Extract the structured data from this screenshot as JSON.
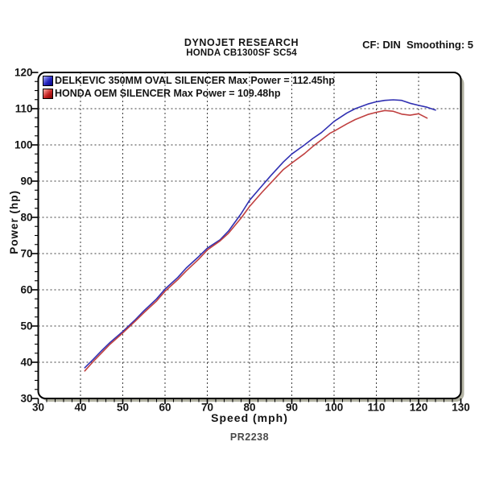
{
  "header": {
    "title": "DYNOJET RESEARCH",
    "subtitle": "HONDA CB1300SF SC54",
    "correction_info": "CF: DIN  Smoothing: 5"
  },
  "footer": {
    "run_id": "PR2238"
  },
  "chart_data": {
    "type": "line",
    "title": "",
    "xlabel": "Speed (mph)",
    "ylabel": "Power (hp)",
    "xlim": [
      30,
      130
    ],
    "ylim": [
      30,
      120
    ],
    "x_ticks": [
      30,
      40,
      50,
      60,
      70,
      80,
      90,
      100,
      110,
      120,
      130
    ],
    "y_ticks": [
      30,
      40,
      50,
      60,
      70,
      80,
      90,
      100,
      110,
      120
    ],
    "x_minor_step": 2,
    "y_minor_step": 2.5,
    "grid": "dashed major gridlines on",
    "grid_color": "#3d3d3d",
    "frame_color": "#000000",
    "shadow_color": "#b2b2a2",
    "legend_position": "top-left inside plot",
    "series": [
      {
        "name": "DELKEVIC 350MM OVAL SILENCER Max Power = 112.45hp",
        "short_name": "DELKEVIC 350MM OVAL SILENCER",
        "max_power_hp": 112.45,
        "color": "#3030b2",
        "x": [
          41,
          43,
          45,
          47,
          50,
          53,
          55,
          58,
          60,
          63,
          65,
          68,
          70,
          73,
          75,
          78,
          80,
          83,
          85,
          88,
          90,
          93,
          95,
          97,
          100,
          103,
          105,
          108,
          110,
          112,
          114,
          116,
          118,
          120,
          122,
          124
        ],
        "y": [
          38.5,
          40.8,
          43.2,
          45.5,
          48.5,
          51.8,
          54.2,
          57.5,
          60.2,
          63.4,
          66.0,
          69.2,
          71.5,
          73.8,
          76.2,
          81.0,
          84.7,
          88.8,
          91.5,
          95.3,
          97.5,
          100.0,
          101.8,
          103.4,
          106.5,
          108.8,
          110.0,
          111.3,
          111.9,
          112.3,
          112.45,
          112.3,
          111.5,
          110.9,
          110.4,
          109.6
        ]
      },
      {
        "name": "HONDA OEM SILENCER Max Power = 109.48hp",
        "short_name": "HONDA OEM SILENCER",
        "max_power_hp": 109.48,
        "color": "#c04040",
        "x": [
          41,
          43,
          45,
          47,
          50,
          53,
          55,
          58,
          60,
          63,
          65,
          68,
          70,
          73,
          75,
          78,
          80,
          83,
          85,
          88,
          90,
          93,
          95,
          97,
          99,
          100,
          103,
          105,
          108,
          110,
          112,
          114,
          116,
          118,
          120,
          122
        ],
        "y": [
          37.6,
          40.2,
          42.6,
          45.0,
          48.1,
          51.4,
          53.7,
          56.9,
          59.6,
          62.8,
          65.2,
          68.5,
          71.0,
          73.5,
          75.6,
          79.8,
          83.0,
          87.0,
          89.5,
          93.2,
          95.0,
          97.6,
          99.6,
          101.4,
          103.2,
          103.8,
          105.8,
          107.0,
          108.4,
          109.0,
          109.48,
          109.3,
          108.5,
          108.2,
          108.6,
          107.4
        ]
      }
    ]
  }
}
